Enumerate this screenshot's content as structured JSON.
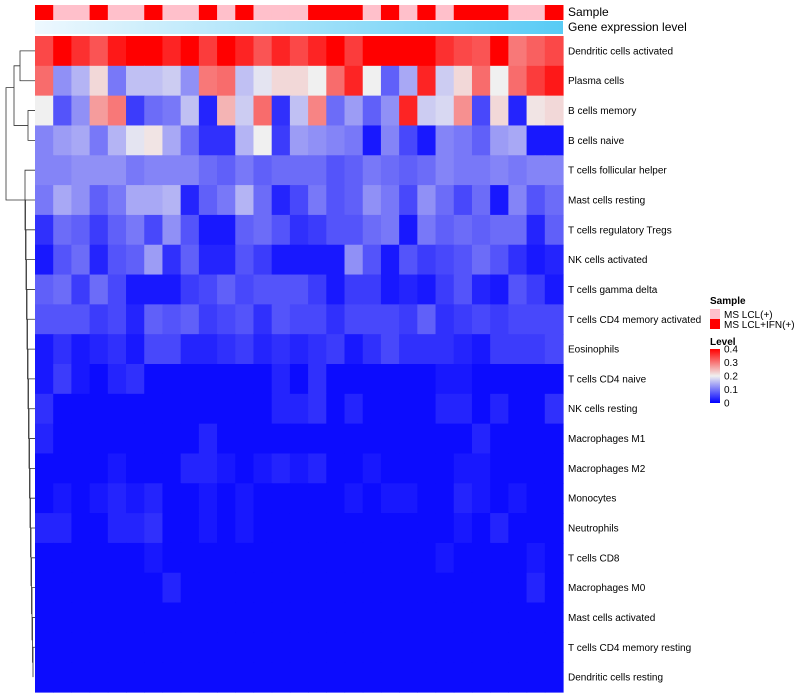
{
  "chart_data": {
    "type": "heatmap",
    "annotation_tracks": [
      {
        "name": "Sample",
        "label": "Sample"
      },
      {
        "name": "Gene expression level",
        "label": "Gene expression level"
      }
    ],
    "rows": [
      "Dendritic cells activated",
      "Plasma cells",
      "B cells memory",
      "B cells naive",
      "T cells follicular helper",
      "Mast cells resting",
      "T cells regulatory  Tregs",
      "NK cells activated",
      "T cells gamma delta",
      "T cells CD4 memory activated",
      "Eosinophils",
      "T cells CD4 naive",
      "NK cells resting",
      "Macrophages M1",
      "Macrophages M2",
      "Monocytes",
      "Neutrophils",
      "T cells CD8",
      "Macrophages M0",
      "Mast cells activated",
      "T cells CD4 memory resting",
      "Dendritic cells resting"
    ],
    "sample_groups": [
      1,
      0,
      0,
      1,
      0,
      0,
      1,
      0,
      0,
      1,
      0,
      1,
      0,
      0,
      0,
      1,
      1,
      1,
      0,
      1,
      0,
      1,
      0,
      1,
      1,
      1,
      0,
      0,
      1
    ],
    "values": [
      [
        0.34,
        0.43,
        0.36,
        0.33,
        0.38,
        0.44,
        0.42,
        0.37,
        0.44,
        0.35,
        0.42,
        0.37,
        0.33,
        0.37,
        0.34,
        0.37,
        0.42,
        0.35,
        0.44,
        0.44,
        0.44,
        0.43,
        0.36,
        0.34,
        0.33,
        0.41,
        0.3,
        0.32,
        0.34
      ],
      [
        0.31,
        0.12,
        0.15,
        0.22,
        0.1,
        0.16,
        0.16,
        0.17,
        0.12,
        0.3,
        0.31,
        0.16,
        0.19,
        0.22,
        0.22,
        0.2,
        0.31,
        0.37,
        0.2,
        0.08,
        0.14,
        0.37,
        0.17,
        0.22,
        0.31,
        0.2,
        0.31,
        0.35,
        0.38
      ],
      [
        0.2,
        0.07,
        0.12,
        0.27,
        0.3,
        0.05,
        0.09,
        0.1,
        0.16,
        0.03,
        0.25,
        0.17,
        0.31,
        0.04,
        0.16,
        0.29,
        0.09,
        0.13,
        0.08,
        0.12,
        0.37,
        0.17,
        0.18,
        0.28,
        0.06,
        0.22,
        0.03,
        0.21,
        0.22
      ],
      [
        0.11,
        0.13,
        0.14,
        0.1,
        0.15,
        0.19,
        0.21,
        0.14,
        0.09,
        0.04,
        0.04,
        0.15,
        0.2,
        0.05,
        0.13,
        0.12,
        0.11,
        0.1,
        0.02,
        0.11,
        0.06,
        0.02,
        0.11,
        0.1,
        0.08,
        0.13,
        0.14,
        0.02,
        0.02
      ],
      [
        0.11,
        0.11,
        0.12,
        0.12,
        0.12,
        0.1,
        0.11,
        0.11,
        0.11,
        0.09,
        0.08,
        0.1,
        0.08,
        0.09,
        0.09,
        0.09,
        0.07,
        0.08,
        0.1,
        0.09,
        0.08,
        0.09,
        0.11,
        0.1,
        0.1,
        0.11,
        0.1,
        0.11,
        0.11
      ],
      [
        0.1,
        0.14,
        0.12,
        0.08,
        0.1,
        0.14,
        0.14,
        0.15,
        0.03,
        0.08,
        0.1,
        0.15,
        0.09,
        0.03,
        0.06,
        0.1,
        0.07,
        0.08,
        0.12,
        0.1,
        0.06,
        0.12,
        0.09,
        0.06,
        0.09,
        0.02,
        0.11,
        0.07,
        0.09
      ],
      [
        0.04,
        0.09,
        0.08,
        0.05,
        0.08,
        0.1,
        0.06,
        0.12,
        0.07,
        0.02,
        0.02,
        0.08,
        0.09,
        0.07,
        0.04,
        0.05,
        0.07,
        0.07,
        0.09,
        0.1,
        0.02,
        0.1,
        0.08,
        0.09,
        0.08,
        0.09,
        0.09,
        0.03,
        0.08
      ],
      [
        0.02,
        0.07,
        0.09,
        0.03,
        0.07,
        0.08,
        0.13,
        0.04,
        0.08,
        0.03,
        0.03,
        0.07,
        0.05,
        0.02,
        0.02,
        0.02,
        0.02,
        0.12,
        0.07,
        0.02,
        0.07,
        0.05,
        0.06,
        0.07,
        0.09,
        0.07,
        0.04,
        0.02,
        0.03
      ],
      [
        0.08,
        0.09,
        0.05,
        0.09,
        0.06,
        0.02,
        0.02,
        0.02,
        0.05,
        0.06,
        0.08,
        0.06,
        0.07,
        0.07,
        0.07,
        0.05,
        0.02,
        0.05,
        0.05,
        0.02,
        0.03,
        0.02,
        0.05,
        0.07,
        0.03,
        0.02,
        0.07,
        0.05,
        0.02
      ],
      [
        0.07,
        0.07,
        0.07,
        0.05,
        0.06,
        0.03,
        0.08,
        0.07,
        0.08,
        0.05,
        0.06,
        0.07,
        0.04,
        0.07,
        0.06,
        0.06,
        0.04,
        0.06,
        0.06,
        0.06,
        0.05,
        0.08,
        0.04,
        0.05,
        0.06,
        0.05,
        0.06,
        0.06,
        0.06
      ],
      [
        0.02,
        0.04,
        0.02,
        0.03,
        0.04,
        0.02,
        0.06,
        0.06,
        0.03,
        0.03,
        0.04,
        0.05,
        0.03,
        0.04,
        0.03,
        0.04,
        0.05,
        0.02,
        0.04,
        0.06,
        0.04,
        0.04,
        0.04,
        0.03,
        0.02,
        0.05,
        0.05,
        0.05,
        0.06
      ],
      [
        0.02,
        0.05,
        0.02,
        0.01,
        0.03,
        0.04,
        0.01,
        0.01,
        0.01,
        0.01,
        0.01,
        0.01,
        0.01,
        0.03,
        0.01,
        0.04,
        0.01,
        0.01,
        0.01,
        0.01,
        0.01,
        0.01,
        0.02,
        0.02,
        0.01,
        0.01,
        0.01,
        0.01,
        0.01
      ],
      [
        0.04,
        0.01,
        0.01,
        0.01,
        0.01,
        0.01,
        0.01,
        0.01,
        0.01,
        0.01,
        0.01,
        0.01,
        0.01,
        0.03,
        0.03,
        0.04,
        0.01,
        0.03,
        0.01,
        0.01,
        0.01,
        0.01,
        0.03,
        0.03,
        0.01,
        0.03,
        0.01,
        0.01,
        0.04
      ],
      [
        0.03,
        0.01,
        0.01,
        0.01,
        0.01,
        0.01,
        0.01,
        0.01,
        0.01,
        0.03,
        0.01,
        0.01,
        0.01,
        0.01,
        0.01,
        0.01,
        0.01,
        0.01,
        0.01,
        0.01,
        0.01,
        0.01,
        0.01,
        0.01,
        0.03,
        0.01,
        0.01,
        0.01,
        0.01
      ],
      [
        0.01,
        0.01,
        0.01,
        0.01,
        0.02,
        0.01,
        0.01,
        0.01,
        0.03,
        0.03,
        0.02,
        0.01,
        0.02,
        0.03,
        0.02,
        0.03,
        0.01,
        0.01,
        0.02,
        0.01,
        0.01,
        0.01,
        0.01,
        0.02,
        0.02,
        0.01,
        0.01,
        0.01,
        0.01
      ],
      [
        0.01,
        0.02,
        0.01,
        0.02,
        0.03,
        0.02,
        0.03,
        0.01,
        0.01,
        0.02,
        0.01,
        0.02,
        0.01,
        0.01,
        0.01,
        0.01,
        0.01,
        0.02,
        0.01,
        0.02,
        0.02,
        0.01,
        0.01,
        0.03,
        0.02,
        0.01,
        0.02,
        0.01,
        0.01
      ],
      [
        0.03,
        0.03,
        0.01,
        0.01,
        0.03,
        0.03,
        0.04,
        0.01,
        0.01,
        0.02,
        0.01,
        0.02,
        0.01,
        0.01,
        0.01,
        0.01,
        0.01,
        0.01,
        0.01,
        0.01,
        0.01,
        0.01,
        0.01,
        0.02,
        0.01,
        0.03,
        0.01,
        0.01,
        0.01
      ],
      [
        0.01,
        0.01,
        0.01,
        0.01,
        0.01,
        0.01,
        0.02,
        0.01,
        0.01,
        0.01,
        0.01,
        0.01,
        0.01,
        0.01,
        0.01,
        0.01,
        0.01,
        0.01,
        0.01,
        0.01,
        0.01,
        0.01,
        0.02,
        0.01,
        0.01,
        0.01,
        0.01,
        0.02,
        0.01
      ],
      [
        0.01,
        0.01,
        0.01,
        0.01,
        0.01,
        0.01,
        0.01,
        0.03,
        0.01,
        0.01,
        0.01,
        0.01,
        0.01,
        0.01,
        0.01,
        0.01,
        0.01,
        0.01,
        0.01,
        0.01,
        0.01,
        0.01,
        0.01,
        0.01,
        0.01,
        0.01,
        0.01,
        0.03,
        0.01
      ],
      [
        0.01,
        0.01,
        0.01,
        0.01,
        0.01,
        0.01,
        0.01,
        0.01,
        0.01,
        0.01,
        0.01,
        0.01,
        0.01,
        0.01,
        0.01,
        0.01,
        0.01,
        0.01,
        0.01,
        0.01,
        0.01,
        0.01,
        0.01,
        0.01,
        0.01,
        0.01,
        0.01,
        0.01,
        0.01
      ],
      [
        0.01,
        0.01,
        0.01,
        0.01,
        0.01,
        0.01,
        0.01,
        0.01,
        0.01,
        0.01,
        0.01,
        0.01,
        0.01,
        0.01,
        0.01,
        0.01,
        0.01,
        0.01,
        0.01,
        0.01,
        0.01,
        0.01,
        0.01,
        0.01,
        0.01,
        0.01,
        0.01,
        0.01,
        0.01
      ],
      [
        0.01,
        0.01,
        0.01,
        0.01,
        0.01,
        0.01,
        0.01,
        0.01,
        0.01,
        0.01,
        0.01,
        0.01,
        0.01,
        0.01,
        0.01,
        0.01,
        0.01,
        0.01,
        0.01,
        0.01,
        0.01,
        0.01,
        0.01,
        0.01,
        0.01,
        0.01,
        0.01,
        0.01,
        0.01
      ]
    ],
    "color_scale": {
      "min": 0,
      "mid": 0.2,
      "max": 0.4,
      "low_color": "#0000ff",
      "mid_color": "#f0f0f0",
      "high_color": "#ff0000"
    },
    "legend_sample": {
      "title": "Sample",
      "items": [
        {
          "label": "MS LCL(+)",
          "color": "#ffc0cb"
        },
        {
          "label": "MS LCL+IFN(+)",
          "color": "#ff0000"
        }
      ]
    },
    "legend_level": {
      "title": "Level",
      "ticks": [
        {
          "value": 0.4,
          "label": "0.4"
        },
        {
          "value": 0.3,
          "label": "0.3"
        },
        {
          "value": 0.2,
          "label": "0.2"
        },
        {
          "value": 0.1,
          "label": "0.1"
        },
        {
          "value": 0,
          "label": "0"
        }
      ]
    },
    "expression_track_color": "#58cbf5"
  }
}
